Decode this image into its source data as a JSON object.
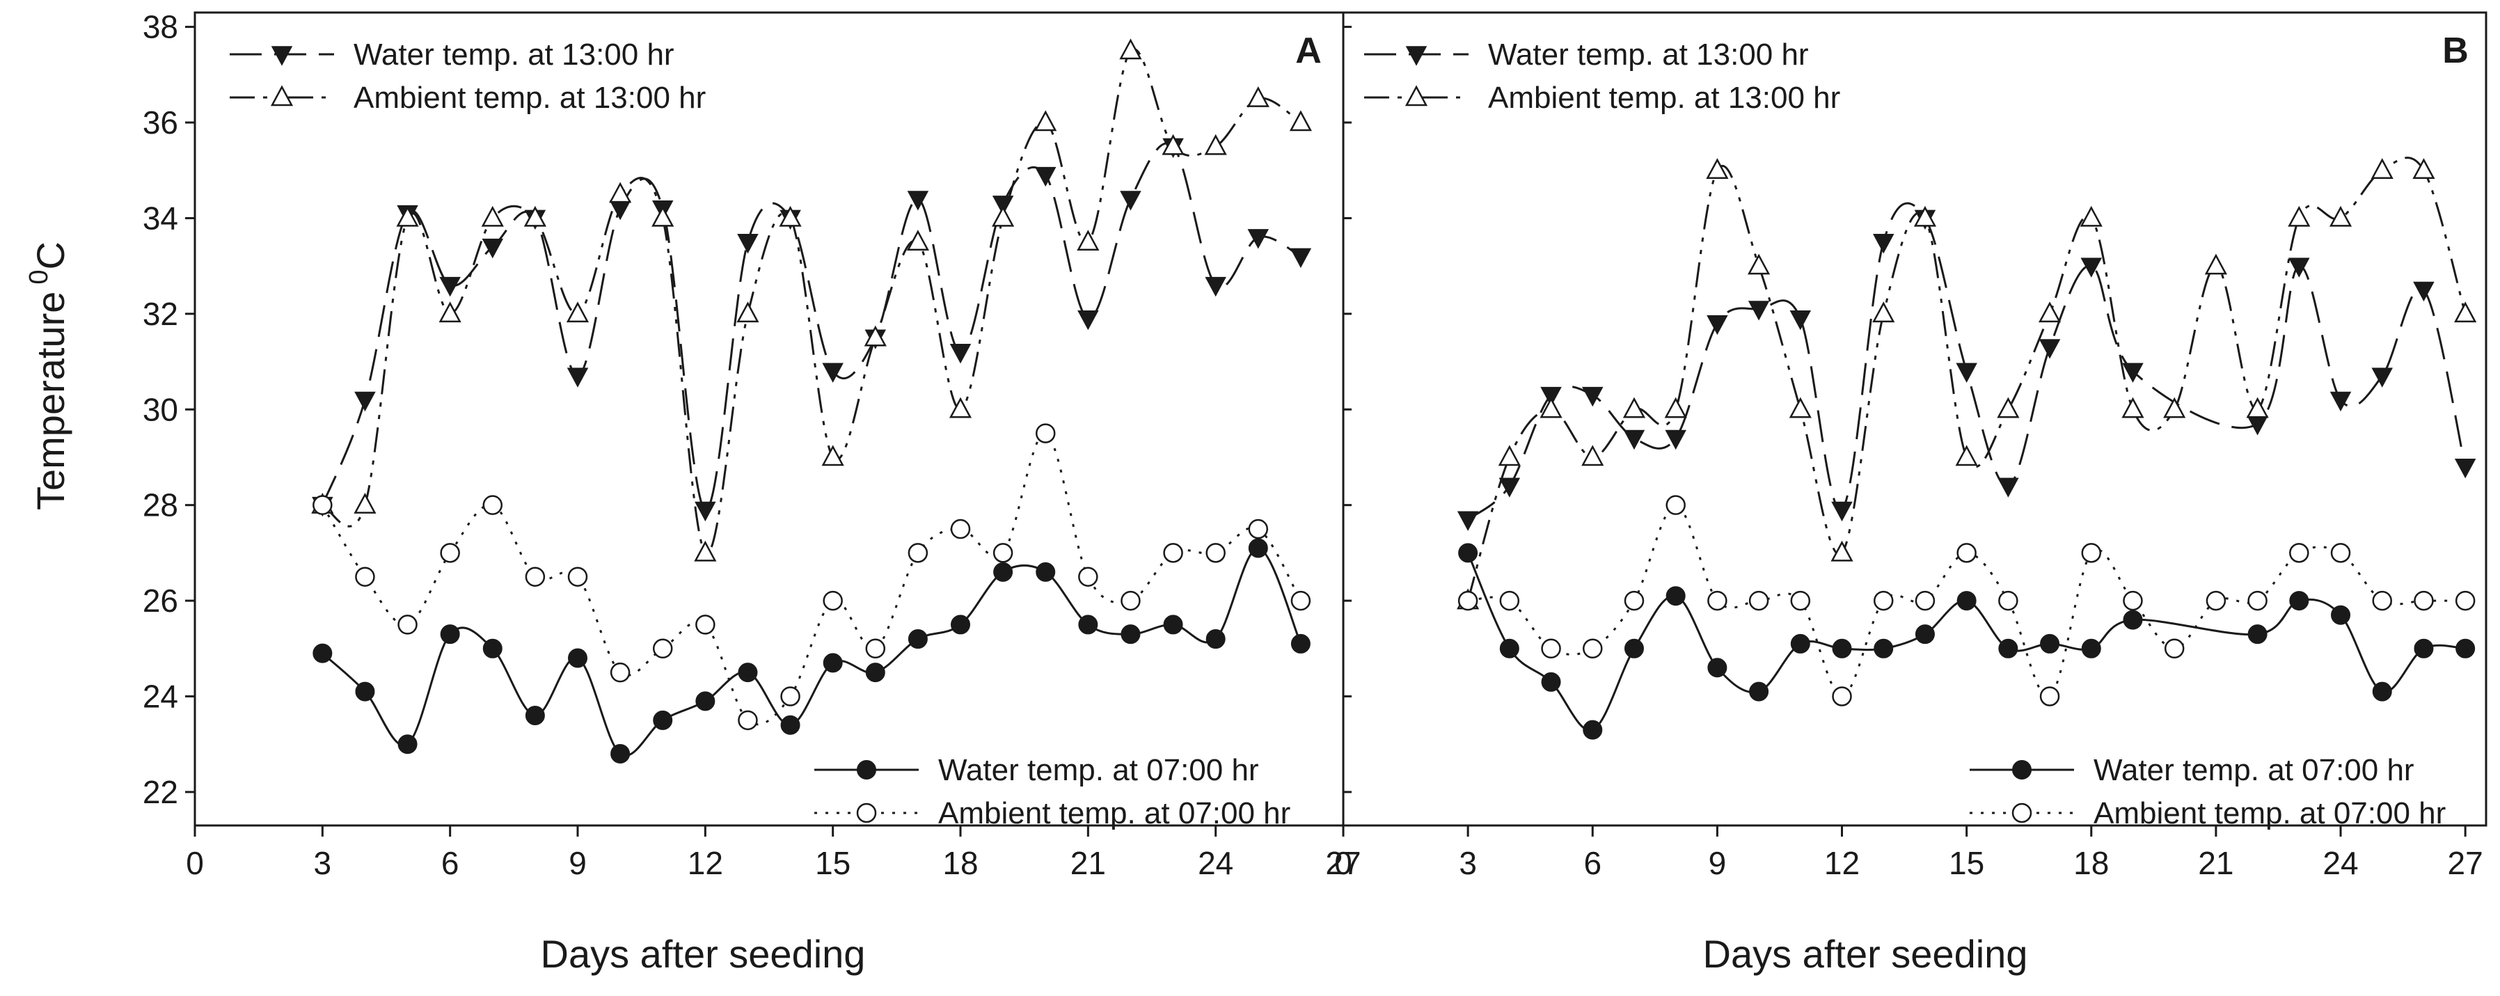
{
  "chart_data": {
    "type": "line",
    "ylabel": "Temperature",
    "ylabel_sup": "0",
    "ylabel_unit": "C",
    "xlabel": "Days after seeding",
    "panels": [
      {
        "id": "A",
        "letter": "A",
        "xlim": [
          0,
          27
        ],
        "ylim": [
          21.3,
          38.3
        ],
        "xticks": [
          0,
          3,
          6,
          9,
          12,
          15,
          18,
          21,
          24,
          27
        ],
        "yticks": [
          22,
          24,
          26,
          28,
          30,
          32,
          34,
          36,
          38
        ],
        "series": [
          {
            "key": "water_13",
            "name": "Water temp. at 13:00 hr",
            "marker": "tri-down",
            "dash": "long",
            "x": [
              3,
              4,
              5,
              6,
              7,
              8,
              9,
              10,
              11,
              12,
              13,
              14,
              15,
              16,
              17,
              18,
              19,
              20,
              21,
              22,
              23,
              24,
              25,
              26
            ],
            "y": [
              28.0,
              30.2,
              34.1,
              32.6,
              33.4,
              34.0,
              30.7,
              34.2,
              34.2,
              27.9,
              33.5,
              34.0,
              30.8,
              31.5,
              34.4,
              31.2,
              34.3,
              34.9,
              31.9,
              34.4,
              35.5,
              32.6,
              33.6,
              33.2
            ]
          },
          {
            "key": "ambient_13",
            "name": "Ambient temp. at 13:00 hr",
            "marker": "tri-up-open",
            "dash": "dashdotdot",
            "x": [
              3,
              4,
              5,
              6,
              7,
              8,
              9,
              10,
              11,
              12,
              13,
              14,
              15,
              16,
              17,
              18,
              19,
              20,
              21,
              22,
              23,
              24,
              25,
              26
            ],
            "y": [
              28.0,
              28.0,
              34.0,
              32.0,
              34.0,
              34.0,
              32.0,
              34.5,
              34.0,
              27.0,
              32.0,
              34.0,
              29.0,
              31.5,
              33.5,
              30.0,
              34.0,
              36.0,
              33.5,
              37.5,
              35.5,
              35.5,
              36.5,
              36.0
            ]
          },
          {
            "key": "water_07",
            "name": "Water temp. at 07:00 hr",
            "marker": "circle-filled",
            "dash": "solid",
            "x": [
              3,
              4,
              5,
              6,
              7,
              8,
              9,
              10,
              11,
              12,
              13,
              14,
              15,
              16,
              17,
              18,
              19,
              20,
              21,
              22,
              23,
              24,
              25,
              26
            ],
            "y": [
              24.9,
              24.1,
              23.0,
              25.3,
              25.0,
              23.6,
              24.8,
              22.8,
              23.5,
              23.9,
              24.5,
              23.4,
              24.7,
              24.5,
              25.2,
              25.5,
              26.6,
              26.6,
              25.5,
              25.3,
              25.5,
              25.2,
              27.1,
              25.1
            ]
          },
          {
            "key": "ambient_07",
            "name": "Ambient temp. at 07:00 hr",
            "marker": "circle-open",
            "dash": "dotted",
            "x": [
              3,
              4,
              5,
              6,
              7,
              8,
              9,
              10,
              11,
              12,
              13,
              14,
              15,
              16,
              17,
              18,
              19,
              20,
              21,
              22,
              23,
              24,
              25,
              26
            ],
            "y": [
              28.0,
              26.5,
              25.5,
              27.0,
              28.0,
              26.5,
              26.5,
              24.5,
              25.0,
              25.5,
              23.5,
              24.0,
              26.0,
              25.0,
              27.0,
              27.5,
              27.0,
              29.5,
              26.5,
              26.0,
              27.0,
              27.0,
              27.5,
              26.0
            ]
          }
        ]
      },
      {
        "id": "B",
        "letter": "B",
        "xlim": [
          0,
          27.5
        ],
        "ylim": [
          21.3,
          38.3
        ],
        "xticks": [
          0,
          3,
          6,
          9,
          12,
          15,
          18,
          21,
          24,
          27
        ],
        "yticks": [
          22,
          24,
          26,
          28,
          30,
          32,
          34,
          36,
          38
        ],
        "series": [
          {
            "key": "water_13",
            "name": "Water temp. at 13:00 hr",
            "marker": "tri-down",
            "dash": "long",
            "x": [
              3,
              4,
              5,
              6,
              7,
              8,
              9,
              10,
              11,
              12,
              13,
              14,
              15,
              16,
              17,
              18,
              19,
              22,
              23,
              24,
              25,
              26,
              27
            ],
            "y": [
              27.7,
              28.4,
              30.3,
              30.3,
              29.4,
              29.4,
              31.8,
              32.1,
              31.9,
              27.9,
              33.5,
              34.0,
              30.8,
              28.4,
              31.3,
              33.0,
              30.8,
              29.7,
              33.0,
              30.2,
              30.7,
              32.5,
              28.8
            ]
          },
          {
            "key": "ambient_13",
            "name": "Ambient temp. at 13:00 hr",
            "marker": "tri-up-open",
            "dash": "dashdotdot",
            "x": [
              3,
              4,
              5,
              6,
              7,
              8,
              9,
              10,
              11,
              12,
              13,
              14,
              15,
              16,
              17,
              18,
              19,
              20,
              21,
              22,
              23,
              24,
              25,
              26,
              27
            ],
            "y": [
              26.0,
              29.0,
              30.0,
              29.0,
              30.0,
              30.0,
              35.0,
              33.0,
              30.0,
              27.0,
              32.0,
              34.0,
              29.0,
              30.0,
              32.0,
              34.0,
              30.0,
              30.0,
              33.0,
              30.0,
              34.0,
              34.0,
              35.0,
              35.0,
              32.0
            ]
          },
          {
            "key": "water_07",
            "name": "Water temp. at 07:00 hr",
            "marker": "circle-filled",
            "dash": "solid",
            "x": [
              3,
              4,
              5,
              6,
              7,
              8,
              9,
              10,
              11,
              12,
              13,
              14,
              15,
              16,
              17,
              18,
              19,
              22,
              23,
              24,
              25,
              26,
              27
            ],
            "y": [
              27.0,
              25.0,
              24.3,
              23.3,
              25.0,
              26.1,
              24.6,
              24.1,
              25.1,
              25.0,
              25.0,
              25.3,
              26.0,
              25.0,
              25.1,
              25.0,
              25.6,
              25.3,
              26.0,
              25.7,
              24.1,
              25.0,
              25.0
            ]
          },
          {
            "key": "ambient_07",
            "name": "Ambient temp. at 07:00 hr",
            "marker": "circle-open",
            "dash": "dotted",
            "x": [
              3,
              4,
              5,
              6,
              7,
              8,
              9,
              10,
              11,
              12,
              13,
              14,
              15,
              16,
              17,
              18,
              19,
              20,
              21,
              22,
              23,
              24,
              25,
              26,
              27
            ],
            "y": [
              26.0,
              26.0,
              25.0,
              25.0,
              26.0,
              28.0,
              26.0,
              26.0,
              26.0,
              24.0,
              26.0,
              26.0,
              27.0,
              26.0,
              24.0,
              27.0,
              26.0,
              25.0,
              26.0,
              26.0,
              27.0,
              27.0,
              26.0,
              26.0,
              26.0
            ]
          }
        ]
      }
    ]
  }
}
